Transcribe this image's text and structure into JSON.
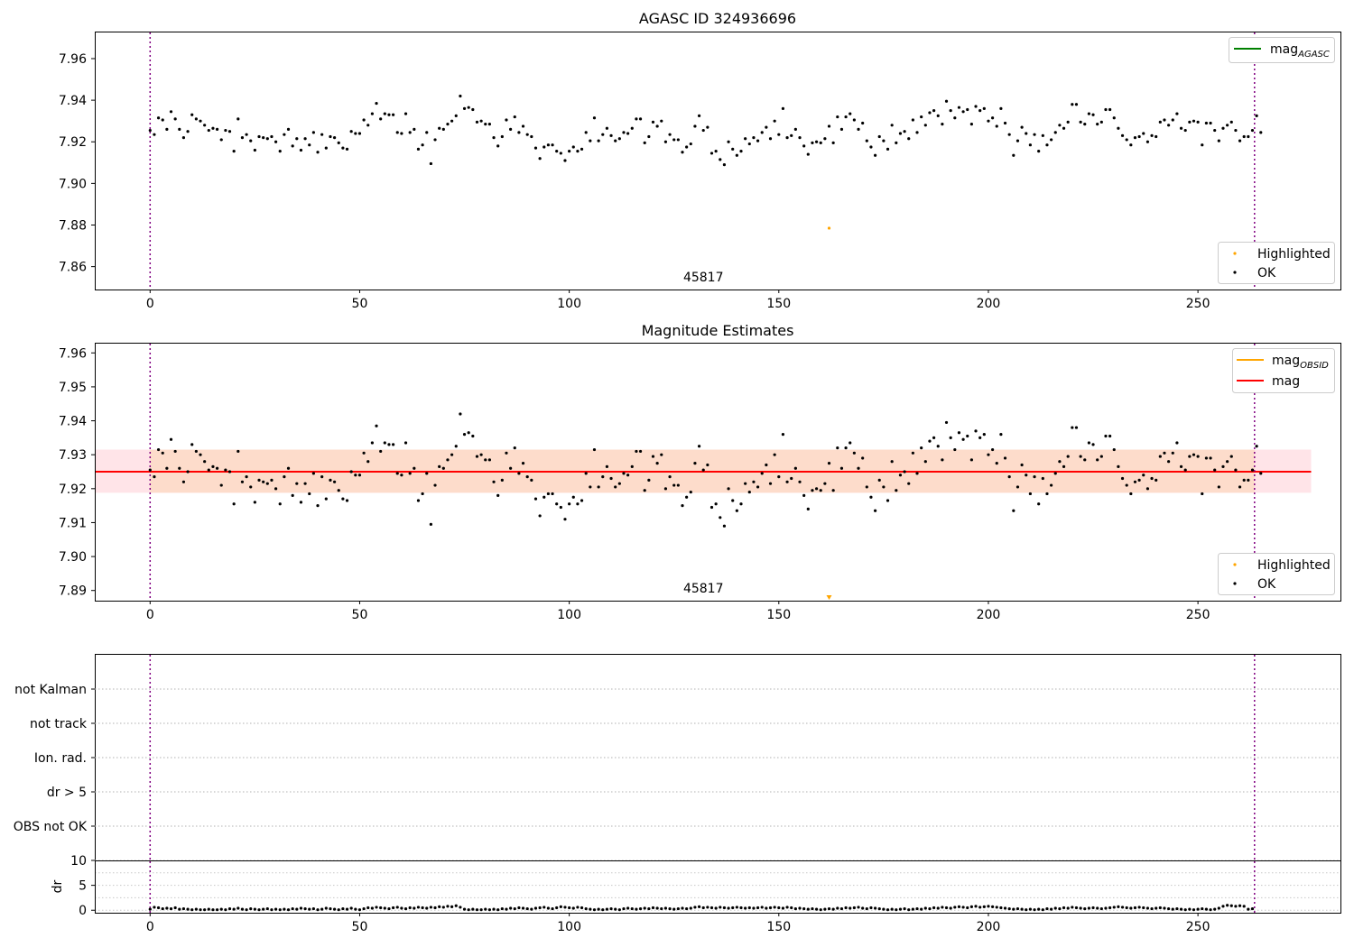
{
  "chart_data": [
    {
      "type": "scatter",
      "title": "AGASC ID 324936696",
      "xlim": [
        -13.2,
        284
      ],
      "ylim": [
        7.849,
        7.973
      ],
      "xticks": [
        0,
        50,
        100,
        150,
        200,
        250,
        300
      ],
      "yticks": [
        7.86,
        7.88,
        7.9,
        7.92,
        7.94,
        7.96
      ],
      "grid": false,
      "obsid_label": "45817",
      "obsid_label_x": 132,
      "vlines": [
        0,
        263.5
      ],
      "legend_top": [
        {
          "label": "mag",
          "subscript": "AGASC",
          "color": "#008000"
        }
      ],
      "legend_bottom": [
        {
          "label": "Highlighted",
          "color": "#ffa500"
        },
        {
          "label": "OK",
          "color": "#000000"
        }
      ],
      "highlighted_points": [
        {
          "x": 162,
          "y": 7.8785
        }
      ]
    },
    {
      "type": "scatter",
      "title": "Magnitude Estimates",
      "xlim": [
        -13.2,
        284
      ],
      "ylim": [
        7.887,
        7.963
      ],
      "xticks": [
        0,
        50,
        100,
        150,
        200,
        250,
        300
      ],
      "yticks": [
        7.89,
        7.9,
        7.91,
        7.92,
        7.93,
        7.94,
        7.95,
        7.96
      ],
      "grid": false,
      "obsid_label": "45817",
      "obsid_label_x": 132,
      "vlines": [
        0,
        263.5
      ],
      "mag_line": {
        "y": 7.925,
        "x_range": [
          -13.2,
          277
        ],
        "color": "#ff0000"
      },
      "band_outer": {
        "y_range": [
          7.9188,
          7.9315
        ],
        "x_range": [
          -13.2,
          277
        ],
        "color": "#ffe4e8"
      },
      "band_inner": {
        "y_range": [
          7.9188,
          7.9315
        ],
        "x_range": [
          0,
          263.5
        ],
        "color": "#fddccb"
      },
      "legend_top": [
        {
          "label": "mag",
          "subscript": "OBSID",
          "color": "#ffa500"
        },
        {
          "label": "mag",
          "color": "#ff0000"
        }
      ],
      "legend_bottom": [
        {
          "label": "Highlighted",
          "color": "#ffa500"
        },
        {
          "label": "OK",
          "color": "#000000"
        }
      ],
      "highlighted_points": [
        {
          "x": 162,
          "y": 7.8875,
          "marker": "triangle-down"
        }
      ]
    },
    {
      "type": "scatter",
      "title": "",
      "categories": [
        "not Kalman",
        "not track",
        "Ion. rad.",
        "dr > 5",
        "OBS not OK"
      ],
      "xlim": [
        -13.2,
        284
      ],
      "grid": true,
      "vlines": [
        0,
        263.5
      ]
    },
    {
      "type": "scatter",
      "title": "",
      "ylabel": "dr",
      "xlim": [
        -13.2,
        284
      ],
      "ylim": [
        -0.5,
        10
      ],
      "yticks": [
        0,
        5,
        10
      ],
      "xticks": [
        0,
        50,
        100,
        150,
        200,
        250,
        300
      ],
      "grid": true,
      "vlines": [
        0,
        263.5
      ]
    }
  ],
  "series_mag": [
    7.9255,
    7.9235,
    7.9315,
    7.9305,
    7.926,
    7.9345,
    7.931,
    7.926,
    7.922,
    7.925,
    7.933,
    7.931,
    7.93,
    7.928,
    7.9255,
    7.9265,
    7.926,
    7.921,
    7.9255,
    7.925,
    7.9155,
    7.931,
    7.922,
    7.9235,
    7.9205,
    7.916,
    7.9225,
    7.922,
    7.9215,
    7.9225,
    7.92,
    7.9155,
    7.9235,
    7.926,
    7.918,
    7.9215,
    7.916,
    7.9215,
    7.9185,
    7.9245,
    7.915,
    7.9235,
    7.917,
    7.9225,
    7.922,
    7.9195,
    7.917,
    7.9165,
    7.925,
    7.924,
    7.924,
    7.9305,
    7.928,
    7.9335,
    7.9385,
    7.931,
    7.9335,
    7.933,
    7.933,
    7.9245,
    7.924,
    7.9335,
    7.9245,
    7.926,
    7.9165,
    7.9185,
    7.9245,
    7.9095,
    7.921,
    7.9265,
    7.926,
    7.9285,
    7.93,
    7.9325,
    7.942,
    7.936,
    7.9365,
    7.9355,
    7.9295,
    7.93,
    7.9285,
    7.9285,
    7.922,
    7.918,
    7.9225,
    7.9305,
    7.926,
    7.932,
    7.9245,
    7.9275,
    7.9235,
    7.9225,
    7.917,
    7.912,
    7.9175,
    7.9185,
    7.9185,
    7.9155,
    7.9145,
    7.911,
    7.9155,
    7.9175,
    7.9155,
    7.9165,
    7.9245,
    7.9205,
    7.9315,
    7.9205,
    7.9235,
    7.9265,
    7.923,
    7.9205,
    7.9215,
    7.9245,
    7.924,
    7.9265,
    7.931,
    7.931,
    7.9195,
    7.9225,
    7.9295,
    7.9275,
    7.93,
    7.92,
    7.9235,
    7.921,
    7.921,
    7.915,
    7.9175,
    7.919,
    7.9275,
    7.9325,
    7.9255,
    7.927,
    7.9145,
    7.9155,
    7.9115,
    7.909,
    7.92,
    7.9165,
    7.9135,
    7.9155,
    7.9215,
    7.919,
    7.922,
    7.9205,
    7.9245,
    7.927,
    7.9215,
    7.93,
    7.9235,
    7.936,
    7.922,
    7.923,
    7.926,
    7.922,
    7.918,
    7.914,
    7.9195,
    7.92,
    7.9195,
    7.9215,
    7.9275,
    7.9195,
    7.932,
    7.926,
    7.932,
    7.9335,
    7.9305,
    7.926,
    7.929,
    7.9205,
    7.9175,
    7.9135,
    7.9225,
    7.9205,
    7.9165,
    7.928,
    7.9195,
    7.924,
    7.925,
    7.9215,
    7.9305,
    7.9245,
    7.932,
    7.928,
    7.934,
    7.935,
    7.9325,
    7.9285,
    7.9395,
    7.935,
    7.9315,
    7.9365,
    7.9345,
    7.9355,
    7.9285,
    7.937,
    7.935,
    7.936,
    7.93,
    7.9315,
    7.9275,
    7.936,
    7.929,
    7.9235,
    7.9135,
    7.9205,
    7.927,
    7.924,
    7.9185,
    7.9235,
    7.9155,
    7.923,
    7.9185,
    7.921,
    7.9245,
    7.928,
    7.9265,
    7.9295,
    7.938,
    7.938,
    7.9295,
    7.9285,
    7.9335,
    7.933,
    7.9285,
    7.9295,
    7.9355,
    7.9355,
    7.9315,
    7.9265,
    7.923,
    7.921,
    7.9185,
    7.922,
    7.9225,
    7.924,
    7.92,
    7.923,
    7.9225,
    7.9295,
    7.9305,
    7.928,
    7.9305,
    7.9335,
    7.9265,
    7.9255,
    7.9295,
    7.93,
    7.9295,
    7.9185,
    7.929,
    7.929,
    7.9255,
    7.9205,
    7.9265,
    7.928,
    7.9295,
    7.9255,
    7.9205,
    7.9225,
    7.9225,
    7.9255,
    7.9325,
    7.9245
  ],
  "series_dr": [
    0.2,
    0.6,
    0.5,
    0.3,
    0.4,
    0.3,
    0.5,
    0.2,
    0.3,
    0.2,
    0.1,
    0.2,
    0.1,
    0.1,
    0.2,
    0.1,
    0.1,
    0.2,
    0.1,
    0.3,
    0.2,
    0.4,
    0.2,
    0.1,
    0.3,
    0.2,
    0.1,
    0.2,
    0.3,
    0.1,
    0.2,
    0.1,
    0.2,
    0.1,
    0.3,
    0.2,
    0.4,
    0.3,
    0.2,
    0.3,
    0.1,
    0.2,
    0.4,
    0.3,
    0.2,
    0.1,
    0.3,
    0.2,
    0.4,
    0.2,
    0.1,
    0.3,
    0.5,
    0.4,
    0.6,
    0.5,
    0.4,
    0.3,
    0.5,
    0.6,
    0.4,
    0.3,
    0.5,
    0.4,
    0.6,
    0.5,
    0.4,
    0.6,
    0.5,
    0.7,
    0.6,
    0.8,
    0.7,
    0.9,
    0.6,
    0.2,
    0.1,
    0.2,
    0.1,
    0.1,
    0.2,
    0.1,
    0.2,
    0.1,
    0.3,
    0.2,
    0.4,
    0.3,
    0.5,
    0.4,
    0.3,
    0.2,
    0.4,
    0.5,
    0.6,
    0.4,
    0.3,
    0.5,
    0.7,
    0.6,
    0.5,
    0.4,
    0.6,
    0.5,
    0.3,
    0.2,
    0.1,
    0.2,
    0.1,
    0.2,
    0.3,
    0.2,
    0.1,
    0.3,
    0.4,
    0.3,
    0.2,
    0.3,
    0.4,
    0.3,
    0.5,
    0.4,
    0.3,
    0.4,
    0.3,
    0.2,
    0.3,
    0.4,
    0.3,
    0.4,
    0.6,
    0.7,
    0.5,
    0.6,
    0.5,
    0.4,
    0.6,
    0.5,
    0.4,
    0.5,
    0.6,
    0.5,
    0.4,
    0.5,
    0.4,
    0.5,
    0.6,
    0.4,
    0.5,
    0.6,
    0.5,
    0.4,
    0.6,
    0.5,
    0.3,
    0.4,
    0.3,
    0.2,
    0.3,
    0.2,
    0.1,
    0.2,
    0.3,
    0.2,
    0.4,
    0.3,
    0.5,
    0.4,
    0.5,
    0.6,
    0.4,
    0.3,
    0.5,
    0.4,
    0.3,
    0.2,
    0.1,
    0.2,
    0.1,
    0.2,
    0.3,
    0.1,
    0.2,
    0.3,
    0.2,
    0.4,
    0.3,
    0.5,
    0.4,
    0.6,
    0.5,
    0.4,
    0.6,
    0.7,
    0.6,
    0.5,
    0.7,
    0.8,
    0.6,
    0.7,
    0.8,
    0.7,
    0.6,
    0.5,
    0.4,
    0.3,
    0.2,
    0.3,
    0.2,
    0.1,
    0.2,
    0.1,
    0.2,
    0.1,
    0.3,
    0.2,
    0.4,
    0.3,
    0.5,
    0.4,
    0.6,
    0.5,
    0.4,
    0.3,
    0.4,
    0.5,
    0.4,
    0.3,
    0.4,
    0.5,
    0.6,
    0.7,
    0.6,
    0.5,
    0.4,
    0.5,
    0.6,
    0.5,
    0.4,
    0.3,
    0.4,
    0.5,
    0.4,
    0.3,
    0.2,
    0.3,
    0.2,
    0.1,
    0.2,
    0.1,
    0.2,
    0.3,
    0.2,
    0.1,
    0.2,
    0.4,
    0.8,
    1.0,
    0.9,
    0.8,
    0.9,
    0.8,
    0.2,
    0.3
  ]
}
